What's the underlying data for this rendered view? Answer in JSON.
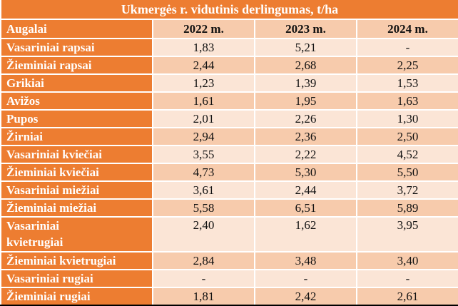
{
  "table": {
    "title": "Ukmergės r. vidutinis derlingumas, t/ha",
    "columns": [
      "Augalai",
      "2022 m.",
      "2023 m.",
      "2024 m."
    ],
    "rows": [
      {
        "crop": "Vasariniai rapsai",
        "values": [
          "1,83",
          "5,21",
          "-"
        ]
      },
      {
        "crop": "Žieminiai rapsai",
        "values": [
          "2,44",
          "2,68",
          "2,25"
        ]
      },
      {
        "crop": "Grikiai",
        "values": [
          "1,23",
          "1,39",
          "1,53"
        ]
      },
      {
        "crop": "Avižos",
        "values": [
          "1,61",
          "1,95",
          "1,63"
        ]
      },
      {
        "crop": "Pupos",
        "values": [
          "2,01",
          "2,26",
          "1,30"
        ]
      },
      {
        "crop": "Žirniai",
        "values": [
          "2,94",
          "2,36",
          "2,50"
        ]
      },
      {
        "crop": "Vasariniai kviečiai",
        "values": [
          "3,55",
          "2,22",
          "4,52"
        ]
      },
      {
        "crop": "Žieminiai kviečiai",
        "values": [
          "4,73",
          "5,30",
          "5,50"
        ]
      },
      {
        "crop": "Vasariniai miežiai",
        "values": [
          "3,61",
          "2,44",
          "3,72"
        ]
      },
      {
        "crop": "Žieminiai miežiai",
        "values": [
          "5,58",
          "6,51",
          "5,89"
        ]
      },
      {
        "crop": "Vasariniai kvietrugiai",
        "values": [
          "2,40",
          "1,62",
          "3,95"
        ]
      },
      {
        "crop": "Žieminiai kvietrugiai",
        "values": [
          "2,84",
          "3,48",
          "3,40"
        ]
      },
      {
        "crop": "Vasariniai rugiai",
        "values": [
          "-",
          "-",
          "-"
        ]
      },
      {
        "crop": "Žieminiai rugiai",
        "values": [
          "1,81",
          "2,42",
          "2,61"
        ]
      }
    ]
  },
  "colors": {
    "accent": "#ED7D31",
    "row_light": "#FBE5D6",
    "row_dark": "#F7CBAC",
    "grid_line": "#FFFFFF",
    "text_light": "#FFFFFF",
    "text_dark": "#111111",
    "bottom_border": "#000000"
  }
}
